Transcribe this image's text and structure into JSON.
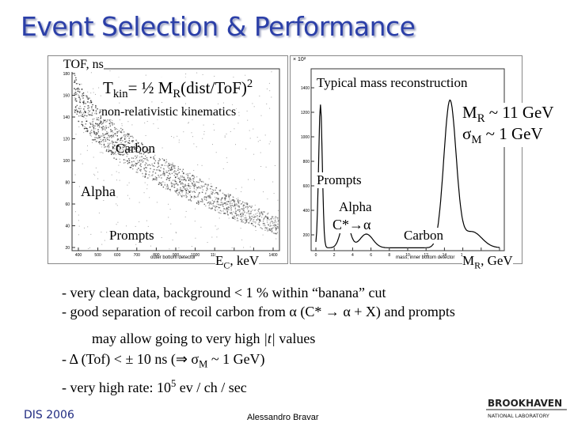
{
  "slide": {
    "title": "Event Selection & Performance",
    "footer_left": "DIS 2006",
    "footer_center": "Alessandro Bravar"
  },
  "left_plot": {
    "ylabel": "TOF, ns",
    "formula_main": "T",
    "formula_sub": "kin",
    "formula_rest": "= ½ M",
    "formula_sub2": "R",
    "formula_tail": "(dist/ToF)",
    "formula_sup": "2",
    "subtitle": "non-relativistic kinematics",
    "label_carbon": "Carbon",
    "label_alpha": "Alpha",
    "label_prompts": "Prompts",
    "xlabel_main": "E",
    "xlabel_sub": "C",
    "xlabel_tail": ", keV",
    "ytick_labels": [
      "180",
      "160",
      "140",
      "120",
      "100",
      "80",
      "60",
      "40",
      "20"
    ],
    "xtick_labels": [
      "400",
      "500",
      "600",
      "700",
      "800",
      "900",
      "1000",
      "1100",
      "1200",
      "1300",
      "1400"
    ],
    "axis_caption": "outer bottom detector"
  },
  "right_plot": {
    "title": "Typical mass reconstruction",
    "mass_main": "M",
    "mass_sub": "R",
    "mass_val": " ~ 11 GeV",
    "sigma_main": "σ",
    "sigma_sub": "M",
    "sigma_val": " ~ 1 GeV",
    "label_prompts": "Prompts",
    "label_alpha": "Alpha",
    "label_cstar": "C*→α",
    "label_carbon": "Carbon",
    "xlabel_main": "M",
    "xlabel_sub": "R",
    "xlabel_tail": ", GeV",
    "yscale": "× 10²",
    "ytick_labels": [
      "1400",
      "1200",
      "1000",
      "800",
      "600",
      "400",
      "200"
    ],
    "xtick_labels": [
      "0",
      "2",
      "4",
      "6",
      "8",
      "10",
      "12",
      "14",
      "16",
      "18",
      "20"
    ],
    "axis_caption": "mass, inner bottom detector"
  },
  "bullets": {
    "b1": "- very clean data, background < 1 % within “banana” cut",
    "b2": "- good separation of recoil carbon from α (C* → α + X) and prompts",
    "b3_pre": "may allow going to very high ",
    "b3_t": "|t|",
    "b3_post": " values",
    "b4_pre": "- Δ (Tof) < ± 10 ns (⇒ σ",
    "b4_sub": "M",
    "b4_post": " ~ 1 GeV)",
    "b5_pre": "- very high rate: 10",
    "b5_sup": "5",
    "b5_post": " ev / ch / sec"
  },
  "logo": {
    "name": "BROOKHAVEN",
    "sub": "NATIONAL LABORATORY"
  }
}
